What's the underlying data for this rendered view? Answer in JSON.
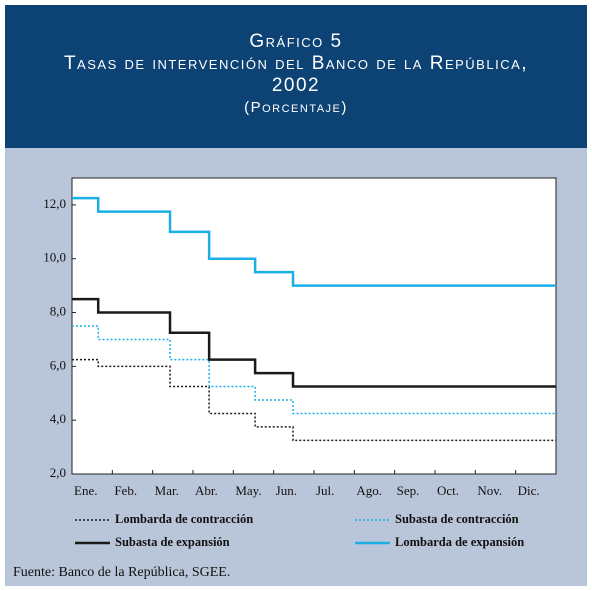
{
  "header": {
    "label": "Gráfico 5",
    "title": "Tasas de intervención del Banco de la República, 2002",
    "subtitle": "(Porcentaje)"
  },
  "chart_data": {
    "type": "line",
    "step": "post",
    "x": [
      0,
      0.65,
      2.43,
      3.4,
      4.54,
      5.48,
      12
    ],
    "xlim": [
      0,
      12
    ],
    "xticks": [
      {
        "value": 0,
        "label": "Ene."
      },
      {
        "value": 1,
        "label": "Feb."
      },
      {
        "value": 2,
        "label": "Mar."
      },
      {
        "value": 3,
        "label": "Abr."
      },
      {
        "value": 4,
        "label": "May."
      },
      {
        "value": 5,
        "label": "Jun."
      },
      {
        "value": 6,
        "label": "Jul."
      },
      {
        "value": 7,
        "label": "Ago."
      },
      {
        "value": 8,
        "label": "Sep."
      },
      {
        "value": 9,
        "label": "Oct."
      },
      {
        "value": 10,
        "label": "Nov."
      },
      {
        "value": 11,
        "label": "Dic."
      }
    ],
    "ylim": [
      2,
      13
    ],
    "yticks": [
      {
        "value": 2,
        "label": "2,0"
      },
      {
        "value": 4,
        "label": "4,0"
      },
      {
        "value": 6,
        "label": "6,0"
      },
      {
        "value": 8,
        "label": "8,0"
      },
      {
        "value": 10,
        "label": "10,0"
      },
      {
        "value": 12,
        "label": "12,0"
      }
    ],
    "grid": false,
    "series": [
      {
        "name": "Lombarda de contracción",
        "color": "#1a1a1a",
        "dash": "dotted",
        "values": [
          6.25,
          6.0,
          5.25,
          4.25,
          3.75,
          3.25,
          3.25
        ]
      },
      {
        "name": "Subasta de contracción",
        "color": "#1ab0e6",
        "dash": "dotted",
        "values": [
          7.5,
          7.0,
          6.25,
          5.25,
          4.75,
          4.25,
          4.25
        ]
      },
      {
        "name": "Subasta de expansión",
        "color": "#1a1a1a",
        "dash": "solid",
        "values": [
          8.5,
          8.0,
          7.25,
          6.25,
          5.75,
          5.25,
          5.25
        ]
      },
      {
        "name": "Lombarda de expansión",
        "color": "#1ab0e6",
        "dash": "solid",
        "values": [
          12.25,
          11.75,
          11.0,
          10.0,
          9.5,
          9.0,
          9.0
        ]
      }
    ],
    "source": "Fuente: Banco de la República, SGEE."
  }
}
